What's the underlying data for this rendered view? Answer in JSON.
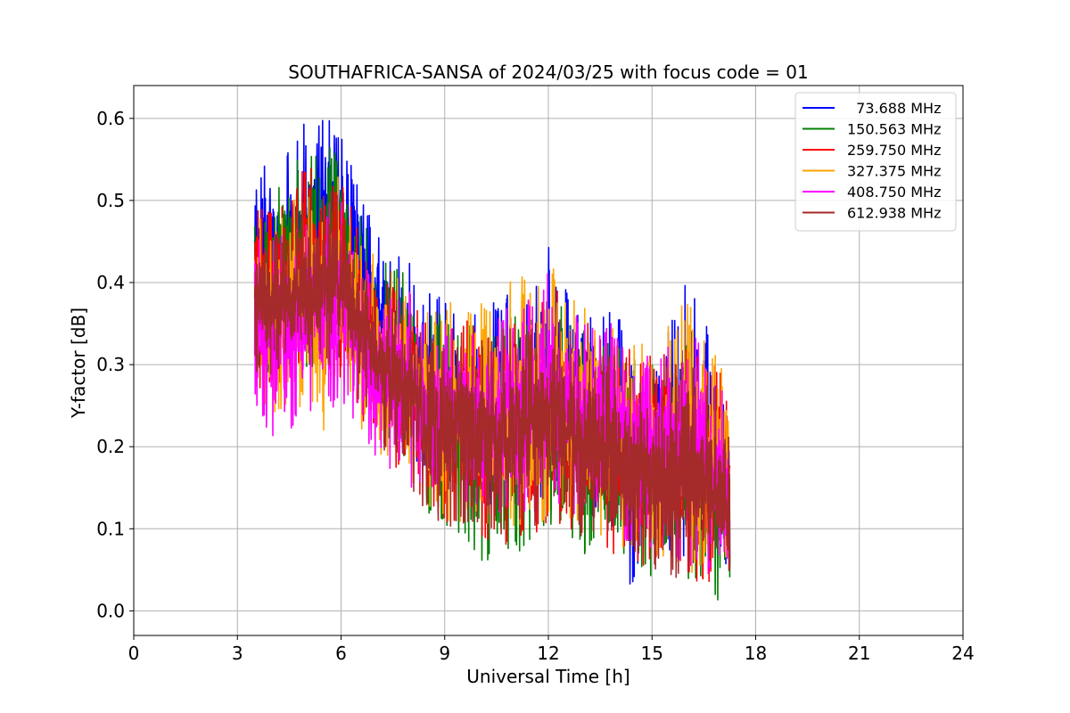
{
  "chart_data": {
    "type": "line",
    "title": "SOUTHAFRICA-SANSA of 2024/03/25 with focus code = 01",
    "xlabel": "Universal Time [h]",
    "ylabel": "Y-factor [dB]",
    "xlim": [
      0,
      24
    ],
    "ylim": [
      -0.03,
      0.64
    ],
    "x_ticks": [
      0,
      3,
      6,
      9,
      12,
      15,
      18,
      21,
      24
    ],
    "x_tick_labels": [
      "0",
      "3",
      "6",
      "9",
      "12",
      "15",
      "18",
      "21",
      "24"
    ],
    "y_ticks": [
      0.0,
      0.1,
      0.2,
      0.3,
      0.4,
      0.5,
      0.6
    ],
    "y_tick_labels": [
      "0.0",
      "0.1",
      "0.2",
      "0.3",
      "0.4",
      "0.5",
      "0.6"
    ],
    "grid": true,
    "legend_position": "top-right",
    "x_range_of_data": [
      3.5,
      17.25
    ],
    "series": [
      {
        "name": "  73.688 MHz",
        "color": "#0000ff",
        "x": [
          3.5,
          4.0,
          4.5,
          5.0,
          5.5,
          6.0,
          6.5,
          7.0,
          7.5,
          8.0,
          8.5,
          9.0,
          9.5,
          10.0,
          10.5,
          11.0,
          11.5,
          12.0,
          12.5,
          13.0,
          13.5,
          14.0,
          14.5,
          15.0,
          15.5,
          16.0,
          16.5,
          17.0,
          17.25
        ],
        "low": [
          0.33,
          0.32,
          0.33,
          0.34,
          0.35,
          0.35,
          0.3,
          0.27,
          0.23,
          0.19,
          0.16,
          0.14,
          0.14,
          0.13,
          0.12,
          0.12,
          0.12,
          0.13,
          0.13,
          0.12,
          0.11,
          0.1,
          0.0,
          0.08,
          0.07,
          0.06,
          0.05,
          0.04,
          0.05
        ],
        "high": [
          0.54,
          0.55,
          0.57,
          0.6,
          0.61,
          0.58,
          0.52,
          0.46,
          0.44,
          0.43,
          0.4,
          0.38,
          0.39,
          0.37,
          0.38,
          0.39,
          0.38,
          0.45,
          0.4,
          0.38,
          0.37,
          0.37,
          0.33,
          0.33,
          0.36,
          0.4,
          0.36,
          0.3,
          0.25
        ]
      },
      {
        "name": "150.563 MHz",
        "color": "#008000",
        "x": [
          3.5,
          4.0,
          4.5,
          5.0,
          5.5,
          6.0,
          6.5,
          7.0,
          7.5,
          8.0,
          8.5,
          9.0,
          9.5,
          10.0,
          10.5,
          11.0,
          11.5,
          12.0,
          12.5,
          13.0,
          13.5,
          14.0,
          14.5,
          15.0,
          15.5,
          16.0,
          16.5,
          17.0,
          17.25
        ],
        "low": [
          0.3,
          0.28,
          0.28,
          0.29,
          0.3,
          0.3,
          0.25,
          0.22,
          0.19,
          0.15,
          0.12,
          0.1,
          0.08,
          0.06,
          0.05,
          0.06,
          0.07,
          0.08,
          0.08,
          0.07,
          0.04,
          0.05,
          0.05,
          0.04,
          0.04,
          0.03,
          0.02,
          0.01,
          0.03
        ],
        "high": [
          0.52,
          0.52,
          0.54,
          0.56,
          0.57,
          0.56,
          0.5,
          0.44,
          0.42,
          0.41,
          0.37,
          0.36,
          0.36,
          0.34,
          0.35,
          0.36,
          0.36,
          0.4,
          0.37,
          0.35,
          0.33,
          0.33,
          0.31,
          0.3,
          0.32,
          0.33,
          0.31,
          0.28,
          0.23
        ]
      },
      {
        "name": "259.750 MHz",
        "color": "#ff0000",
        "x": [
          3.5,
          4.0,
          4.5,
          5.0,
          5.5,
          6.0,
          6.5,
          7.0,
          7.5,
          8.0,
          8.5,
          9.0,
          9.5,
          10.0,
          10.5,
          11.0,
          11.5,
          12.0,
          12.5,
          13.0,
          13.5,
          14.0,
          14.5,
          15.0,
          15.5,
          16.0,
          16.5,
          17.0,
          17.25
        ],
        "low": [
          0.27,
          0.26,
          0.26,
          0.27,
          0.28,
          0.28,
          0.24,
          0.21,
          0.18,
          0.14,
          0.12,
          0.1,
          0.09,
          0.08,
          0.08,
          0.08,
          0.09,
          0.1,
          0.1,
          0.09,
          0.07,
          0.06,
          0.06,
          0.05,
          0.05,
          0.04,
          0.03,
          0.02,
          0.04
        ],
        "high": [
          0.5,
          0.5,
          0.52,
          0.54,
          0.55,
          0.54,
          0.48,
          0.43,
          0.41,
          0.4,
          0.36,
          0.35,
          0.36,
          0.34,
          0.35,
          0.37,
          0.36,
          0.41,
          0.38,
          0.36,
          0.34,
          0.34,
          0.32,
          0.31,
          0.33,
          0.34,
          0.32,
          0.31,
          0.24
        ]
      },
      {
        "name": "327.375 MHz",
        "color": "#ffa500",
        "x": [
          3.5,
          4.0,
          4.5,
          5.0,
          5.5,
          6.0,
          6.5,
          7.0,
          7.5,
          8.0,
          8.5,
          9.0,
          9.5,
          10.0,
          10.5,
          11.0,
          11.5,
          12.0,
          12.5,
          13.0,
          13.5,
          14.0,
          14.5,
          15.0,
          15.5,
          16.0,
          16.5,
          17.0,
          17.25
        ],
        "low": [
          0.26,
          0.24,
          0.24,
          0.25,
          0.22,
          0.26,
          0.22,
          0.18,
          0.17,
          0.15,
          0.13,
          0.11,
          0.1,
          0.1,
          0.1,
          0.1,
          0.1,
          0.11,
          0.11,
          0.1,
          0.08,
          0.07,
          0.07,
          0.06,
          0.06,
          0.05,
          0.04,
          0.03,
          0.05
        ],
        "high": [
          0.48,
          0.48,
          0.5,
          0.52,
          0.53,
          0.53,
          0.47,
          0.43,
          0.42,
          0.4,
          0.37,
          0.37,
          0.39,
          0.38,
          0.39,
          0.41,
          0.41,
          0.42,
          0.41,
          0.38,
          0.36,
          0.36,
          0.33,
          0.32,
          0.35,
          0.38,
          0.34,
          0.3,
          0.24
        ]
      },
      {
        "name": "408.750 MHz",
        "color": "#ff00ff",
        "x": [
          3.5,
          4.0,
          4.5,
          5.0,
          5.5,
          6.0,
          6.5,
          7.0,
          7.5,
          8.0,
          8.5,
          9.0,
          9.5,
          10.0,
          10.5,
          11.0,
          11.5,
          12.0,
          12.5,
          13.0,
          13.5,
          14.0,
          14.5,
          15.0,
          15.5,
          16.0,
          16.5,
          17.0,
          17.25
        ],
        "low": [
          0.24,
          0.21,
          0.22,
          0.23,
          0.24,
          0.25,
          0.22,
          0.18,
          0.16,
          0.15,
          0.14,
          0.12,
          0.12,
          0.11,
          0.11,
          0.12,
          0.12,
          0.12,
          0.12,
          0.11,
          0.09,
          0.08,
          0.08,
          0.07,
          0.06,
          0.05,
          0.04,
          0.02,
          0.0
        ],
        "high": [
          0.46,
          0.45,
          0.47,
          0.49,
          0.5,
          0.5,
          0.45,
          0.41,
          0.4,
          0.39,
          0.36,
          0.35,
          0.36,
          0.35,
          0.36,
          0.38,
          0.38,
          0.42,
          0.38,
          0.36,
          0.35,
          0.35,
          0.32,
          0.31,
          0.33,
          0.36,
          0.32,
          0.28,
          0.22
        ]
      },
      {
        "name": "612.938 MHz",
        "color": "#a52a2a",
        "x": [
          3.5,
          4.0,
          4.5,
          5.0,
          5.5,
          6.0,
          6.5,
          7.0,
          7.5,
          8.0,
          8.5,
          9.0,
          9.5,
          10.0,
          10.5,
          11.0,
          11.5,
          12.0,
          12.5,
          13.0,
          13.5,
          14.0,
          14.5,
          15.0,
          15.5,
          16.0,
          16.5,
          17.0,
          17.25
        ],
        "low": [
          0.29,
          0.28,
          0.28,
          0.29,
          0.3,
          0.3,
          0.25,
          0.21,
          0.18,
          0.14,
          0.12,
          0.1,
          0.1,
          0.09,
          0.09,
          0.09,
          0.1,
          0.11,
          0.1,
          0.09,
          0.07,
          0.06,
          0.05,
          0.05,
          0.04,
          0.04,
          0.03,
          0.02,
          0.04
        ],
        "high": [
          0.47,
          0.47,
          0.49,
          0.51,
          0.52,
          0.51,
          0.46,
          0.41,
          0.39,
          0.38,
          0.34,
          0.33,
          0.34,
          0.33,
          0.34,
          0.35,
          0.35,
          0.37,
          0.35,
          0.34,
          0.32,
          0.31,
          0.29,
          0.28,
          0.3,
          0.31,
          0.29,
          0.27,
          0.21
        ]
      }
    ]
  }
}
